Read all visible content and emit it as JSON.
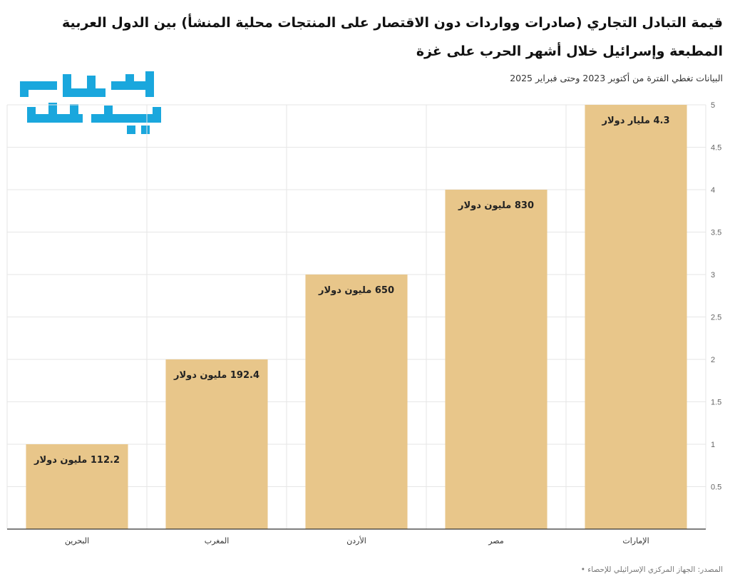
{
  "header": {
    "title": "قيمة التبادل التجاري (صادرات وواردات دون الاقتصار على المنتجات محلية المنشأ) بين الدول العربية المطبعة وإسرائيل خلال أشهر الحرب على غزة",
    "subtitle": "البيانات تغطي الفترة من أكتوبر 2023 وحتى فبراير 2025"
  },
  "logo": {
    "name": "arabi-post-logo",
    "text": "عربي بوست",
    "color": "#1aa7dd"
  },
  "footer": {
    "source": "المصدر: الجهاز المركزي الإسرائيلي للإحصاء •"
  },
  "chart_data": {
    "type": "bar",
    "categories": [
      "البحرين",
      "المغرب",
      "الأردن",
      "مصر",
      "الإمارات"
    ],
    "values": [
      1,
      2,
      3,
      4,
      5
    ],
    "data_labels": [
      "112.2 مليون دولار",
      "192.4 مليون دولار",
      "650 مليون دولار",
      "830 مليون دولار",
      "4.3 مليار دولار"
    ],
    "yticks": [
      "0.5",
      "1",
      "1.5",
      "2",
      "2.5",
      "3",
      "3.5",
      "4",
      "4.5",
      "5"
    ],
    "ylim": [
      0,
      5
    ],
    "y_axis_side": "right",
    "grid": true,
    "colors": {
      "bar": "#e8c68a",
      "grid": "#e6e6e6",
      "axis": "#333333"
    }
  }
}
